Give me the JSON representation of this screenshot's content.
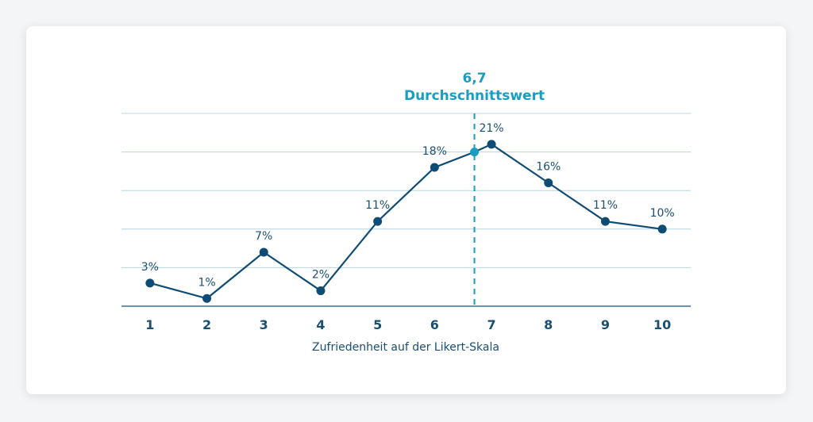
{
  "chart_data": {
    "type": "line",
    "title": "",
    "xlabel": "Zufriedenheit auf der Likert-Skala",
    "ylabel": "",
    "categories": [
      "1",
      "2",
      "3",
      "4",
      "5",
      "6",
      "7",
      "8",
      "9",
      "10"
    ],
    "values": [
      3,
      1,
      7,
      2,
      11,
      18,
      21,
      16,
      11,
      10
    ],
    "data_labels": [
      "3%",
      "1%",
      "7%",
      "2%",
      "11%",
      "18%",
      "21%",
      "16%",
      "11%",
      "10%"
    ],
    "ylim": [
      0,
      25
    ],
    "yticks": [
      0,
      5,
      10,
      15,
      20,
      25
    ],
    "grid": true,
    "average": {
      "value": 6.7,
      "y": 20,
      "value_label": "6,7",
      "label": "Durchschnittswert"
    },
    "colors": {
      "line": "#0f4c75",
      "average": "#1a9dc2",
      "grid": "#b8d4e3",
      "axis": "#3b6f93",
      "text": "#1b4f72"
    }
  }
}
